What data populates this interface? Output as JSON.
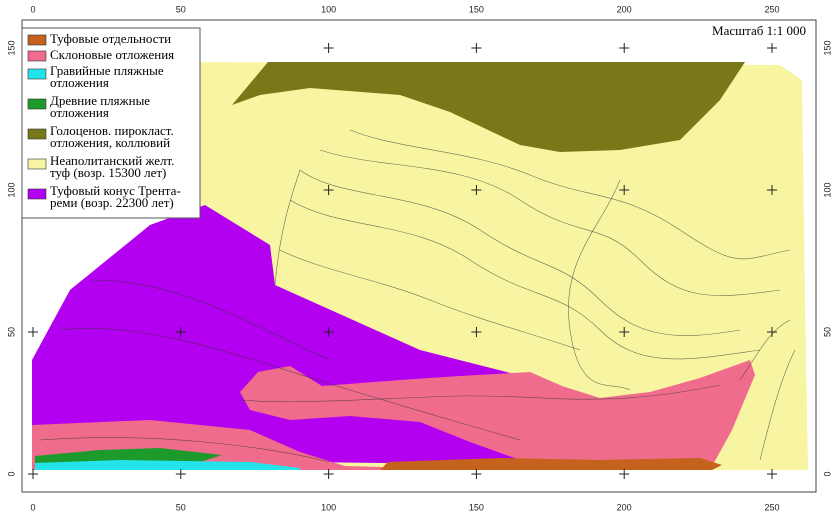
{
  "map": {
    "scale": "Масштаб 1:1 000",
    "x_ticks": [
      0,
      50,
      100,
      150,
      200,
      250
    ],
    "y_ticks": [
      0,
      50,
      100,
      150
    ],
    "legend": [
      {
        "lines": [
          "Туфовые отдельности"
        ],
        "color": "#c4621e"
      },
      {
        "lines": [
          "Склоновые отложения"
        ],
        "color": "#f06c8c"
      },
      {
        "lines": [
          "Гравийные пляжные",
          "отложения"
        ],
        "color": "#22e4ea"
      },
      {
        "lines": [
          "Древние пляжные",
          "отложения"
        ],
        "color": "#1c9a2c"
      },
      {
        "lines": [
          "Голоценов. пирокласт.",
          "отложения, коллювий"
        ],
        "color": "#787818"
      },
      {
        "lines": [
          "Неаполитанский желт.",
          "туф (возр. 15300 лет)"
        ],
        "color": "#f8f5a2"
      },
      {
        "lines": [
          "Туфовый конус Трента-",
          "реми (возр. 22300 лет)"
        ],
        "color": "#b400f0"
      }
    ]
  }
}
